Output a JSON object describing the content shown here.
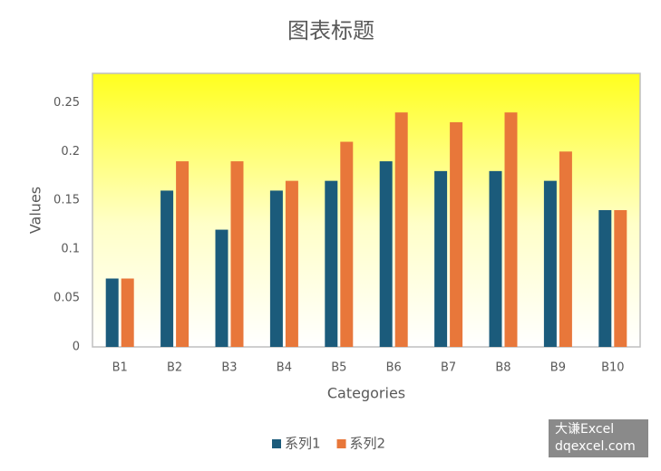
{
  "chart_data": {
    "type": "bar",
    "title": "图表标题",
    "x_label": "Categories",
    "y_label": "Values",
    "categories": [
      "B1",
      "B2",
      "B3",
      "B4",
      "B5",
      "B6",
      "B7",
      "B8",
      "B9",
      "B10"
    ],
    "series": [
      {
        "name": "系列1",
        "color": "#1b5b7b",
        "values": [
          0.07,
          0.16,
          0.12,
          0.16,
          0.17,
          0.19,
          0.18,
          0.18,
          0.17,
          0.14
        ]
      },
      {
        "name": "系列2",
        "color": "#e8773a",
        "values": [
          0.07,
          0.19,
          0.19,
          0.17,
          0.21,
          0.24,
          0.23,
          0.24,
          0.2,
          0.14
        ]
      }
    ],
    "ylim": [
      0,
      0.28
    ],
    "yticks": [
      0,
      0.05,
      0.1,
      0.15,
      0.2,
      0.25
    ],
    "grid": false,
    "legend": "bottom"
  },
  "watermark": {
    "line1": "大谦Excel",
    "line2": "dqexcel.com"
  }
}
